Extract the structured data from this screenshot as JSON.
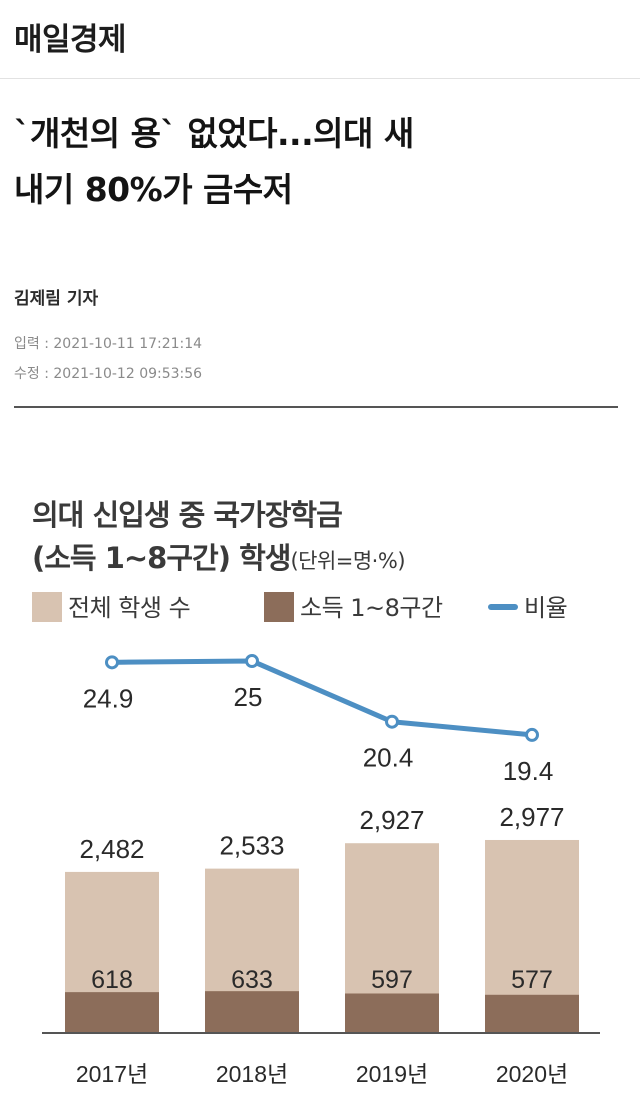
{
  "brand": "매일경제",
  "article": {
    "headline_line1": "`개천의 용` 없었다...의대 새",
    "headline_line2": "내기 80%가 금수저",
    "byline": "김제림 기자",
    "input_time": "입력 : 2021-10-11 17:21:14",
    "update_time": "수정 : 2021-10-12 09:53:56"
  },
  "colors": {
    "total_bar": "#d8c3b1",
    "low_income_bar": "#8c6d5a",
    "ratio_line": "#4d8fc3",
    "text": "#3a3a3a"
  },
  "chart_data": {
    "type": "bar",
    "title_line1": "의대 신입생 중 국가장학금",
    "title_line2": "(소득 1~8구간) 학생",
    "unit": "(단위=명·%)",
    "categories": [
      "2017년",
      "2018년",
      "2019년",
      "2020년"
    ],
    "series": [
      {
        "name": "전체 학생 수",
        "kind": "bar",
        "values": [
          2482,
          2533,
          2927,
          2977
        ],
        "labels": [
          "2,482",
          "2,533",
          "2,927",
          "2,977"
        ]
      },
      {
        "name": "소득 1~8구간",
        "kind": "bar",
        "values": [
          618,
          633,
          597,
          577
        ],
        "labels": [
          "618",
          "633",
          "597",
          "577"
        ]
      },
      {
        "name": "비율",
        "kind": "line",
        "values": [
          24.9,
          25,
          20.4,
          19.4
        ],
        "labels": [
          "24.9",
          "25",
          "20.4",
          "19.4"
        ]
      }
    ],
    "legend_position": "top",
    "grid": false
  }
}
